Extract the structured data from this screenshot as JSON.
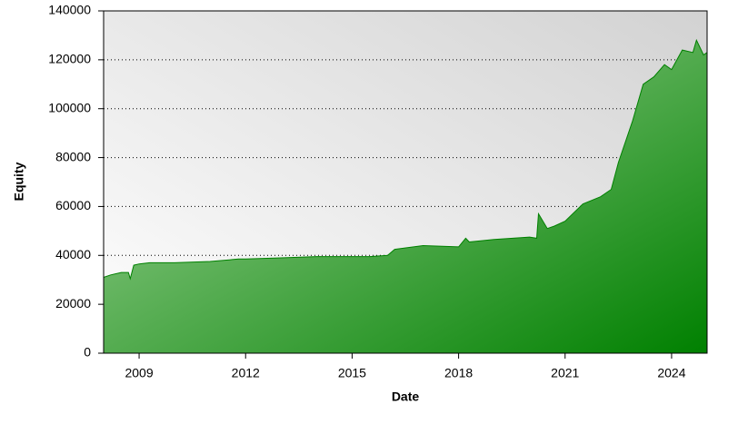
{
  "chart_data": {
    "type": "area",
    "x_label": "Date",
    "y_label": "Equity",
    "x": [
      2008.0,
      2008.2,
      2008.5,
      2008.7,
      2008.75,
      2008.85,
      2009.0,
      2009.3,
      2010.0,
      2011.0,
      2011.8,
      2012.0,
      2013.0,
      2014.0,
      2015.0,
      2015.5,
      2016.0,
      2016.2,
      2017.0,
      2018.0,
      2018.2,
      2018.3,
      2019.0,
      2020.0,
      2020.2,
      2020.25,
      2020.5,
      2020.7,
      2021.0,
      2021.5,
      2022.0,
      2022.3,
      2022.5,
      2022.9,
      2023.2,
      2023.5,
      2023.8,
      2024.0,
      2024.3,
      2024.6,
      2024.7,
      2024.9,
      2025.0
    ],
    "values": [
      31000,
      32000,
      33000,
      33000,
      30500,
      36000,
      36500,
      37000,
      37000,
      37500,
      38500,
      38500,
      39000,
      39500,
      39500,
      39500,
      40000,
      42500,
      44000,
      43500,
      47000,
      45500,
      46500,
      47500,
      47000,
      57000,
      51000,
      52000,
      54000,
      61000,
      64000,
      67000,
      78000,
      95000,
      110000,
      113000,
      118000,
      116000,
      124000,
      123000,
      128000,
      122000,
      123000
    ],
    "color": "#008000",
    "xlim": [
      2008,
      2025
    ],
    "xticks": [
      2009,
      2012,
      2015,
      2018,
      2021,
      2024
    ],
    "ylim": [
      0,
      140000
    ],
    "yticks": [
      0,
      20000,
      40000,
      60000,
      80000,
      100000,
      120000,
      140000
    ],
    "grid": true
  }
}
